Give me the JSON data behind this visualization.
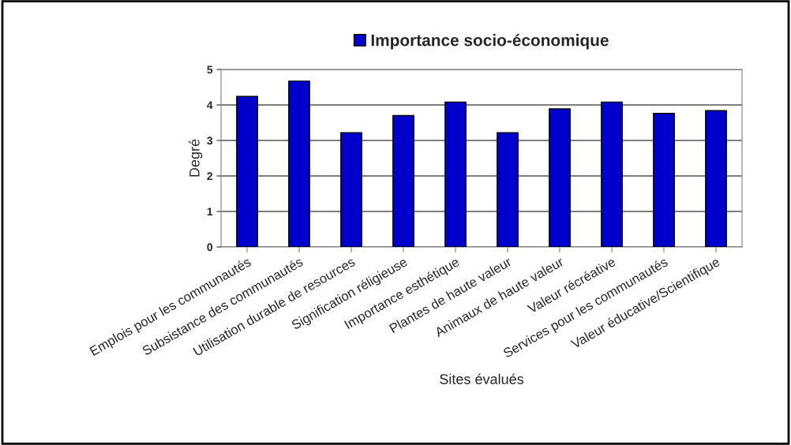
{
  "chart_data": {
    "type": "bar",
    "xlabel": "Sites évalués",
    "ylabel": "Degré",
    "categories": [
      "Emplois pour les communautés",
      "Subsistance des communautés",
      "Utilisation durable de resources",
      "Signification réligieuse",
      "Importance esthétique",
      "Plantes de haute valeur",
      "Animaux de haute valeur",
      "Valeur récréative",
      "Services pour les communautés",
      "Valeur éducative/Scientifique"
    ],
    "series": [
      {
        "name": "Importance socio-économique",
        "color": "#0000cc",
        "values": [
          4.24,
          4.67,
          3.22,
          3.7,
          4.08,
          3.22,
          3.89,
          4.08,
          3.76,
          3.84
        ]
      }
    ],
    "ylim": [
      0,
      5
    ],
    "yticks": [
      0,
      1,
      2,
      3,
      4,
      5
    ],
    "grid": "y",
    "legend": "top"
  }
}
